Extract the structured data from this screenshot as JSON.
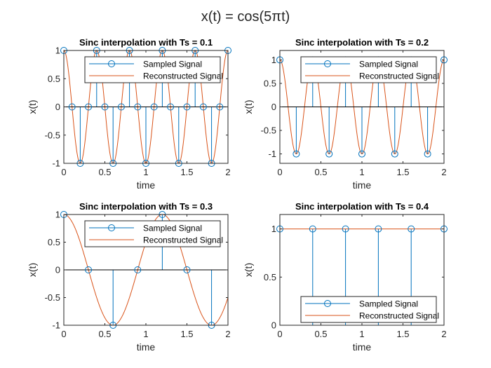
{
  "figure": {
    "title": "x(t) = cos(5πt)"
  },
  "colors": {
    "sampled": "#0072BD",
    "reconstructed": "#D95319",
    "axis": "#262626",
    "background": "#ffffff"
  },
  "chart_data": [
    {
      "type": "line",
      "title": "Sinc interpolation with Ts = 0.1",
      "xlabel": "time",
      "ylabel": "x(t)",
      "xlim": [
        0,
        2
      ],
      "ylim": [
        -1,
        1
      ],
      "xticks": [
        0,
        0.5,
        1,
        1.5,
        2
      ],
      "yticks": [
        -1,
        -0.5,
        0,
        0.5,
        1
      ],
      "ts": 0.1,
      "legend": {
        "location": "top-right",
        "entries": [
          "Sampled Signal",
          "Reconstructed Signal"
        ]
      },
      "series": [
        {
          "name": "Sampled Signal",
          "style": "stem",
          "x": [
            0,
            0.1,
            0.2,
            0.3,
            0.4,
            0.5,
            0.6,
            0.7,
            0.8,
            0.9,
            1.0,
            1.1,
            1.2,
            1.3,
            1.4,
            1.5,
            1.6,
            1.7,
            1.8,
            1.9,
            2.0
          ],
          "y": [
            1,
            0,
            -1,
            0,
            1,
            0,
            -1,
            0,
            1,
            0,
            -1,
            0,
            1,
            0,
            -1,
            0,
            1,
            0,
            -1,
            0,
            1
          ]
        },
        {
          "name": "Reconstructed Signal",
          "style": "line",
          "function": "cos(5πt)"
        }
      ]
    },
    {
      "type": "line",
      "title": "Sinc interpolation with Ts = 0.2",
      "xlabel": "time",
      "ylabel": "x(t)",
      "xlim": [
        0,
        2
      ],
      "ylim": [
        -1.2,
        1.2
      ],
      "xticks": [
        0,
        0.5,
        1,
        1.5,
        2
      ],
      "yticks": [
        -1,
        -0.5,
        0,
        0.5,
        1
      ],
      "ts": 0.2,
      "legend": {
        "location": "top-right",
        "entries": [
          "Sampled Signal",
          "Reconstructed Signal"
        ]
      },
      "series": [
        {
          "name": "Sampled Signal",
          "style": "stem",
          "x": [
            0,
            0.2,
            0.4,
            0.6,
            0.8,
            1.0,
            1.2,
            1.4,
            1.6,
            1.8,
            2.0
          ],
          "y": [
            1,
            -1,
            1,
            -1,
            1,
            -1,
            1,
            -1,
            1,
            -1,
            1
          ]
        },
        {
          "name": "Reconstructed Signal",
          "style": "line",
          "function": "cos(5πt)"
        }
      ]
    },
    {
      "type": "line",
      "title": "Sinc interpolation with Ts = 0.3",
      "xlabel": "time",
      "ylabel": "x(t)",
      "xlim": [
        0,
        2
      ],
      "ylim": [
        -1,
        1
      ],
      "xticks": [
        0,
        0.5,
        1,
        1.5,
        2
      ],
      "yticks": [
        -1,
        -0.5,
        0,
        0.5,
        1
      ],
      "ts": 0.3,
      "legend": {
        "location": "top-right",
        "entries": [
          "Sampled Signal",
          "Reconstructed Signal"
        ]
      },
      "series": [
        {
          "name": "Sampled Signal",
          "style": "stem",
          "x": [
            0,
            0.3,
            0.6,
            0.9,
            1.2,
            1.5,
            1.8
          ],
          "y": [
            1,
            0,
            -1,
            0,
            1,
            0,
            -1
          ]
        },
        {
          "name": "Reconstructed Signal",
          "style": "line",
          "function": "cos(5πt/3)"
        }
      ]
    },
    {
      "type": "line",
      "title": "Sinc interpolation with Ts = 0.4",
      "xlabel": "time",
      "ylabel": "x(t)",
      "xlim": [
        0,
        2
      ],
      "ylim": [
        0,
        1.15
      ],
      "xticks": [
        0,
        0.5,
        1,
        1.5,
        2
      ],
      "yticks": [
        0,
        0.5,
        1
      ],
      "ts": 0.4,
      "legend": {
        "location": "bottom-right",
        "entries": [
          "Sampled Signal",
          "Reconstructed Signal"
        ]
      },
      "series": [
        {
          "name": "Sampled Signal",
          "style": "stem",
          "x": [
            0,
            0.4,
            0.8,
            1.2,
            1.6,
            2.0
          ],
          "y": [
            1,
            1,
            1,
            1,
            1,
            1
          ]
        },
        {
          "name": "Reconstructed Signal",
          "style": "line",
          "function": "1 + 0.13·cos(5πt/2)"
        }
      ]
    }
  ]
}
